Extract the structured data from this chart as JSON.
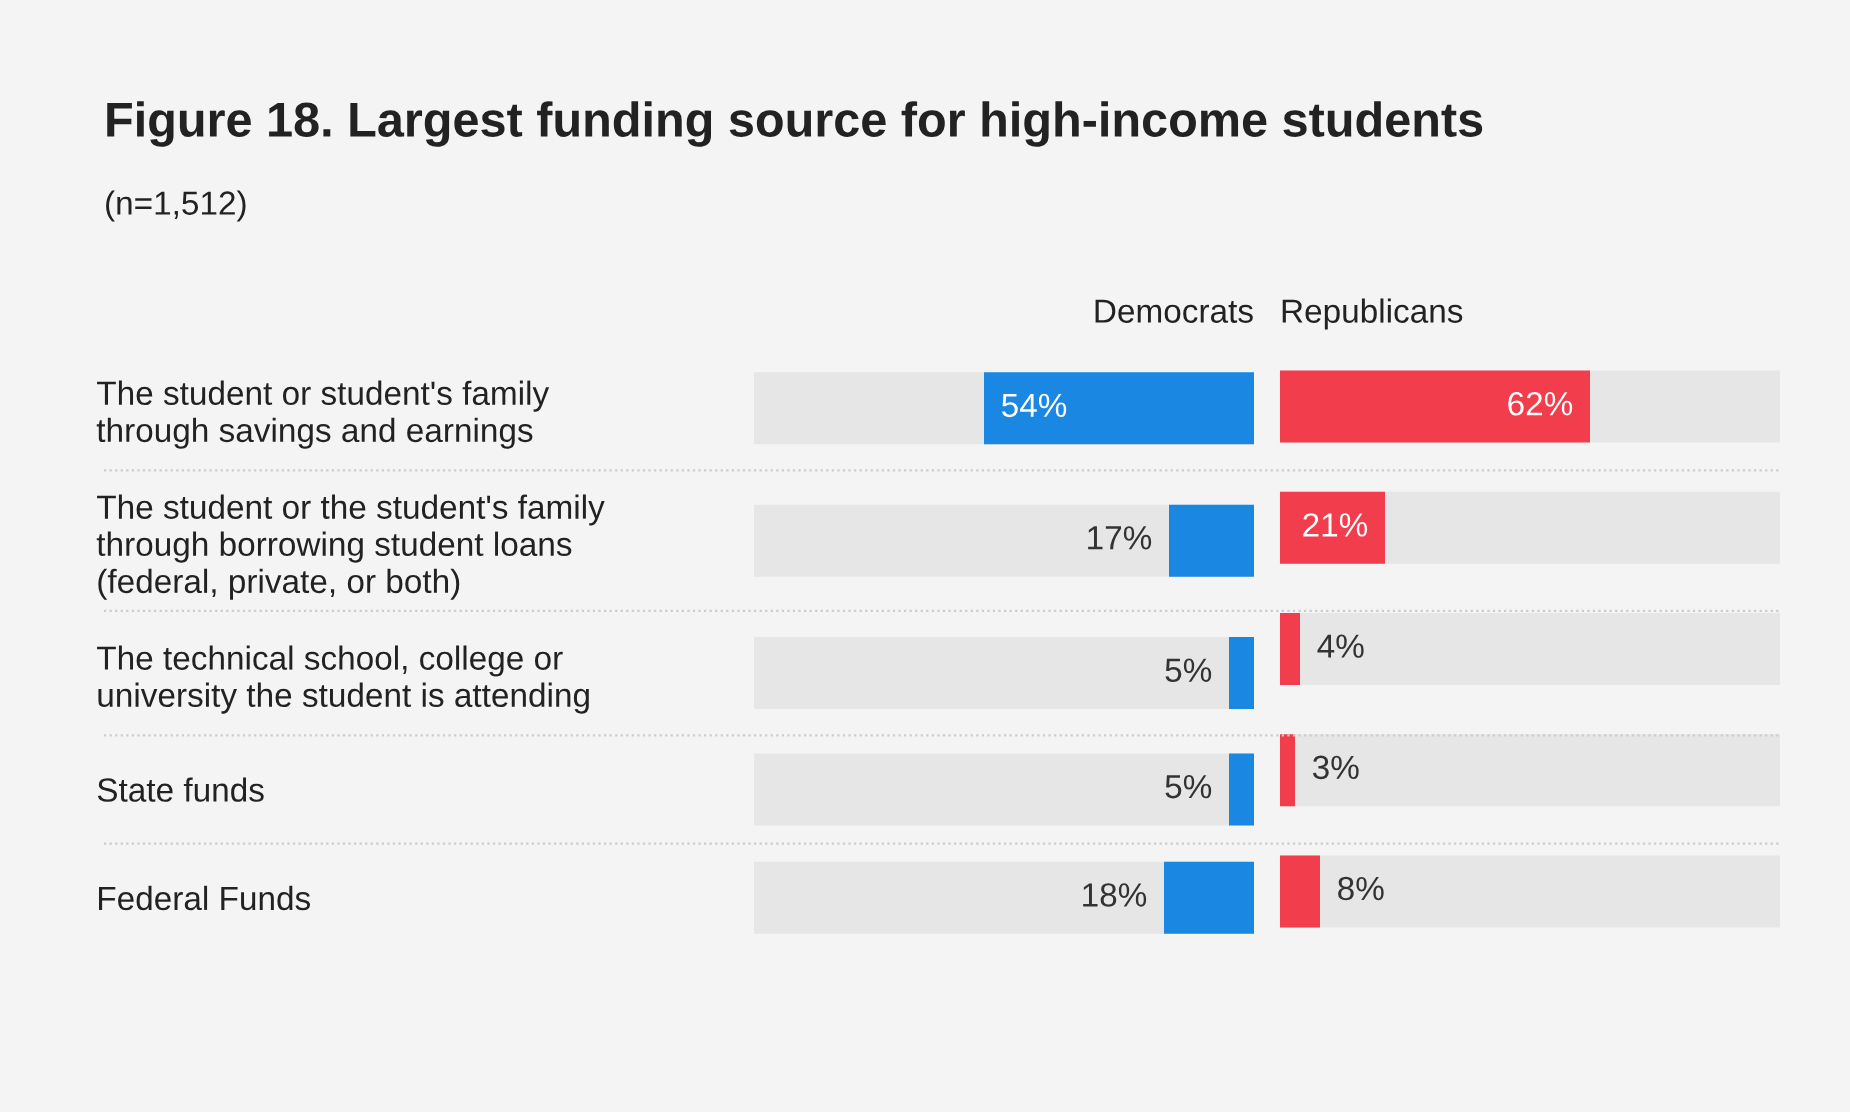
{
  "chart_data": [
    {
      "type": "bar",
      "orientation": "horizontal",
      "title": "Figure 18. Largest funding source for high-income students",
      "subtitle": "(n=1,512)",
      "categories": [
        "The student or student's family\nthrough savings and earnings",
        "The student or the student's family\nthrough borrowing student loans\n(federal, private, or both)",
        "The technical school, college or\nuniversity the student is attending",
        "State funds",
        "Federal Funds"
      ],
      "series": [
        {
          "name": "Democrats",
          "color": "#1a87e2",
          "values": [
            54,
            17,
            5,
            5,
            18
          ],
          "value_labels": [
            "54%",
            "17%",
            "5%",
            "5%",
            "18%"
          ]
        }
      ],
      "xlim": [
        100,
        0
      ],
      "tick_labels": "y"
    },
    {
      "type": "bar",
      "orientation": "horizontal",
      "categories": [
        null,
        null,
        null,
        null,
        null
      ],
      "series": [
        {
          "name": "Republicans",
          "color": "#f23d4c",
          "values": [
            62,
            21,
            4,
            3,
            8
          ],
          "value_labels": [
            "62%",
            "21%",
            "4%",
            "3%",
            "8%"
          ]
        }
      ],
      "xlim": [
        0,
        100
      ],
      "tick_labels": false
    }
  ]
}
